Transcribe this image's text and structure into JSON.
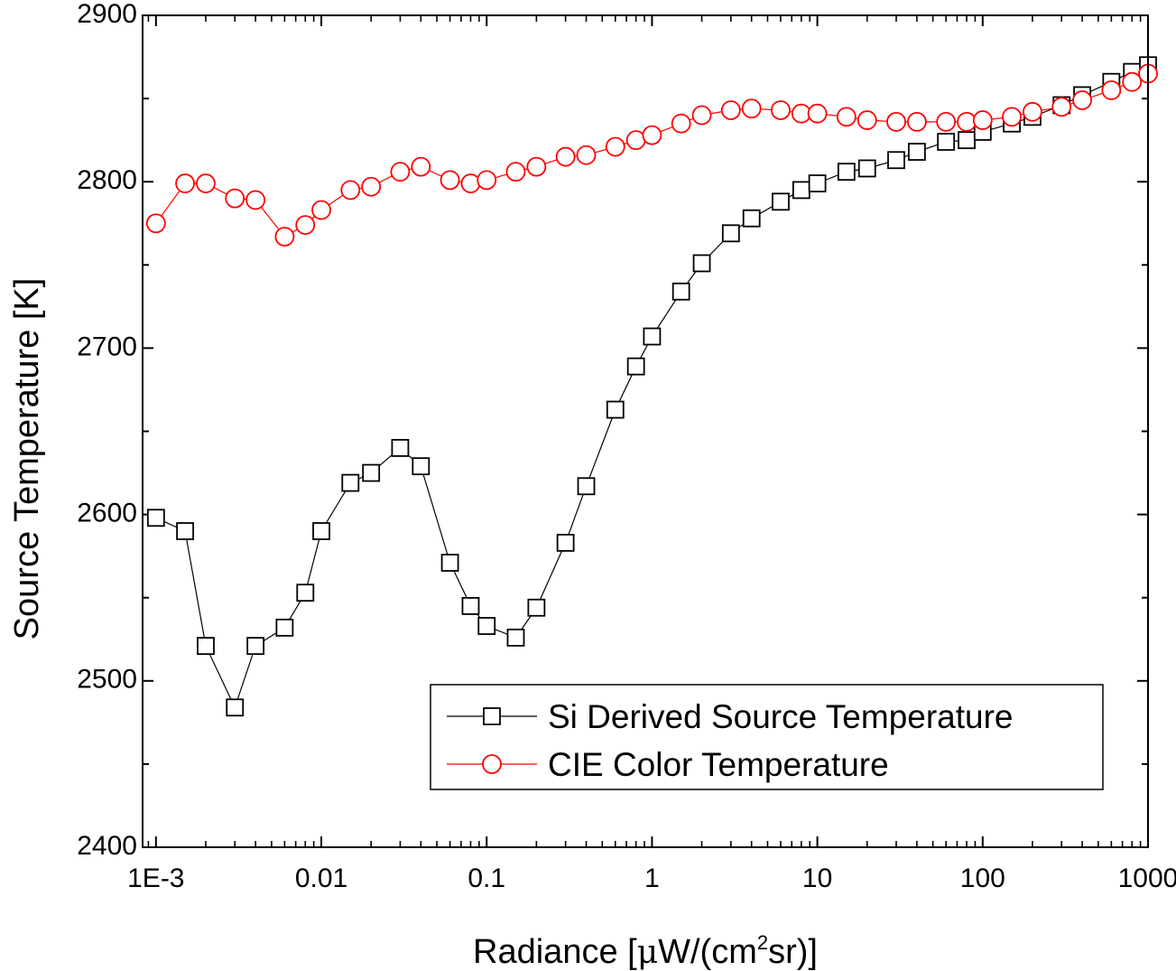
{
  "chart_data": {
    "type": "line",
    "xlabel": "Radiance [μW/(cm²sr)]",
    "xlabel_parts": {
      "prefix": "Radiance [",
      "mu": "μ",
      "unit": "W/(cm",
      "sup": "2",
      "suffix": "sr)]"
    },
    "ylabel": "Source Temperature [K]",
    "xscale": "log",
    "xlim": [
      0.00083,
      1000
    ],
    "ylim": [
      2400,
      2900
    ],
    "x_ticks": [
      {
        "value": 0.001,
        "label": "1E-3"
      },
      {
        "value": 0.01,
        "label": "0.01"
      },
      {
        "value": 0.1,
        "label": "0.1"
      },
      {
        "value": 1,
        "label": "1"
      },
      {
        "value": 10,
        "label": "10"
      },
      {
        "value": 100,
        "label": "100"
      },
      {
        "value": 1000,
        "label": "1000"
      }
    ],
    "y_ticks": [
      {
        "value": 2400,
        "label": "2400"
      },
      {
        "value": 2500,
        "label": "2500"
      },
      {
        "value": 2600,
        "label": "2600"
      },
      {
        "value": 2700,
        "label": "2700"
      },
      {
        "value": 2800,
        "label": "2800"
      },
      {
        "value": 2900,
        "label": "2900"
      }
    ],
    "y_minor_step": 50,
    "grid": false,
    "legend_position": "bottom-right",
    "series": [
      {
        "name": "Si Derived Source Temperature",
        "color": "#000000",
        "marker": "square",
        "x": [
          0.001,
          0.0015,
          0.002,
          0.003,
          0.004,
          0.006,
          0.008,
          0.01,
          0.015,
          0.02,
          0.03,
          0.04,
          0.06,
          0.08,
          0.1,
          0.15,
          0.2,
          0.3,
          0.4,
          0.6,
          0.8,
          1,
          1.5,
          2,
          3,
          4,
          6,
          8,
          10,
          15,
          20,
          30,
          40,
          60,
          80,
          100,
          150,
          200,
          300,
          400,
          600,
          800,
          1000
        ],
        "y": [
          2598,
          2590,
          2521,
          2484,
          2521,
          2532,
          2553,
          2590,
          2619,
          2625,
          2640,
          2629,
          2571,
          2545,
          2533,
          2526,
          2544,
          2583,
          2617,
          2663,
          2689,
          2707,
          2734,
          2751,
          2769,
          2778,
          2788,
          2795,
          2799,
          2806,
          2808,
          2813,
          2818,
          2824,
          2825,
          2830,
          2835,
          2839,
          2846,
          2852,
          2860,
          2866,
          2870
        ]
      },
      {
        "name": "CIE Color Temperature",
        "color": "#ff0000",
        "marker": "circle",
        "x": [
          0.001,
          0.0015,
          0.002,
          0.003,
          0.004,
          0.006,
          0.008,
          0.01,
          0.015,
          0.02,
          0.03,
          0.04,
          0.06,
          0.08,
          0.1,
          0.15,
          0.2,
          0.3,
          0.4,
          0.6,
          0.8,
          1,
          1.5,
          2,
          3,
          4,
          6,
          8,
          10,
          15,
          20,
          30,
          40,
          60,
          80,
          100,
          150,
          200,
          300,
          400,
          600,
          800,
          1000
        ],
        "y": [
          2775,
          2799,
          2799,
          2790,
          2789,
          2767,
          2774,
          2783,
          2795,
          2797,
          2806,
          2809,
          2801,
          2799,
          2801,
          2806,
          2809,
          2815,
          2816,
          2821,
          2825,
          2828,
          2835,
          2840,
          2843,
          2844,
          2843,
          2841,
          2841,
          2839,
          2837,
          2836,
          2836,
          2836,
          2836,
          2837,
          2839,
          2842,
          2845,
          2849,
          2855,
          2860,
          2865
        ]
      }
    ]
  }
}
